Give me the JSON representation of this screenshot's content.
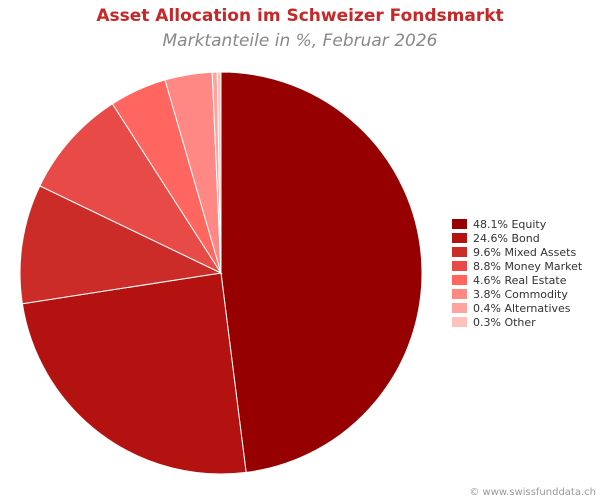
{
  "chart_data": {
    "type": "pie",
    "title": "Asset Allocation im Schweizer Fondsmarkt",
    "subtitle": "Marktanteile in %, Februar 2026",
    "start_angle_deg": 90,
    "direction": "clockwise",
    "legend_position": "right",
    "slices": [
      {
        "label": "48.1% Equity",
        "value": 48.1,
        "color": "#960000"
      },
      {
        "label": "24.6% Bond",
        "value": 24.6,
        "color": "#b31210"
      },
      {
        "label": "9.6% Mixed Assets",
        "value": 9.6,
        "color": "#cc2c28"
      },
      {
        "label": "8.8% Money Market",
        "value": 8.8,
        "color": "#e84a47"
      },
      {
        "label": "4.6% Real Estate",
        "value": 4.6,
        "color": "#ff6660"
      },
      {
        "label": "3.8% Commodity",
        "value": 3.8,
        "color": "#ff8784"
      },
      {
        "label": "0.4% Alternatives",
        "value": 0.4,
        "color": "#ffa39e"
      },
      {
        "label": "0.3% Other",
        "value": 0.3,
        "color": "#ffc1bb"
      }
    ]
  },
  "footer": {
    "credit": "© www.swissfunddata.ch"
  }
}
